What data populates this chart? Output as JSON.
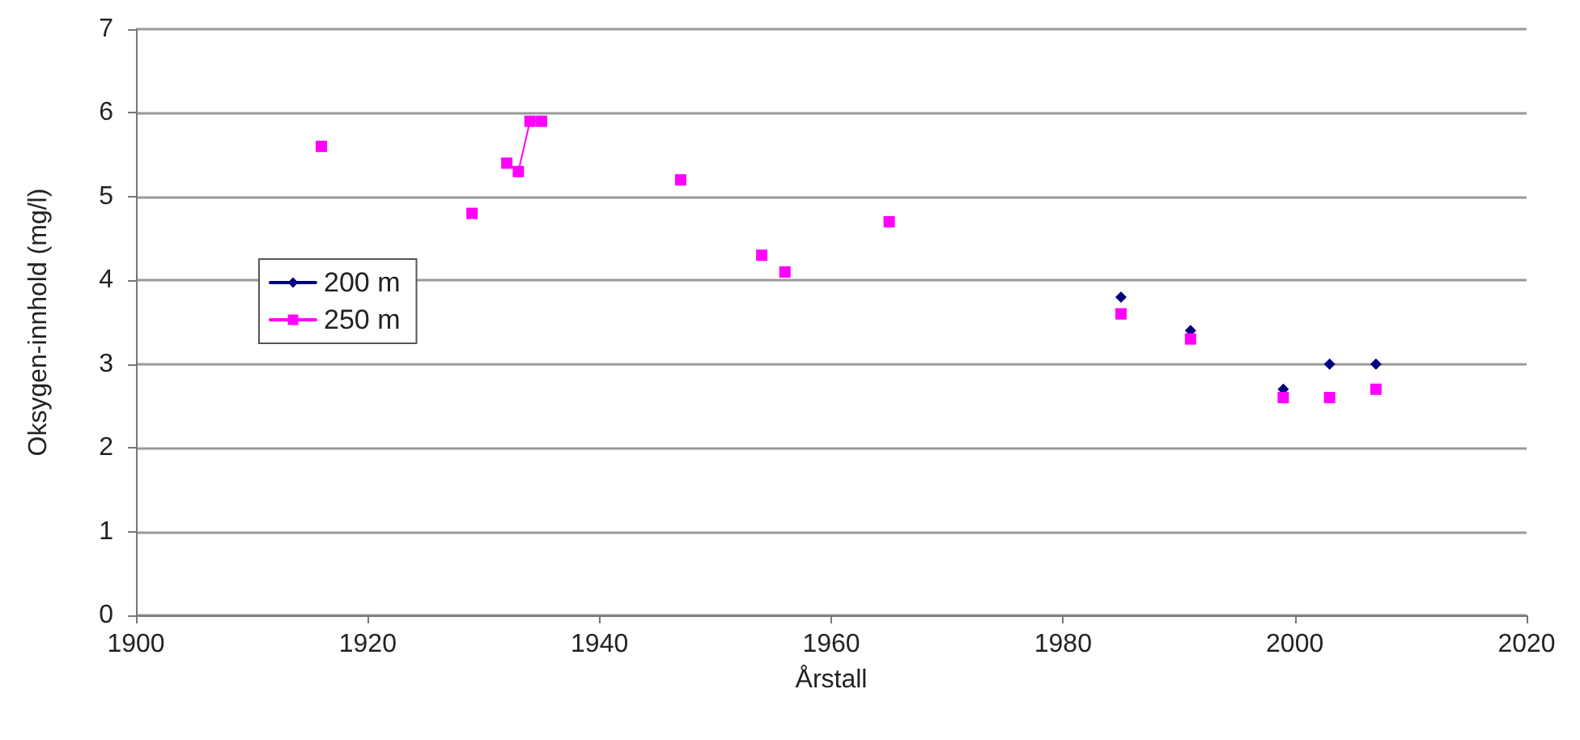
{
  "chart_data": {
    "type": "line",
    "xlabel": "Årstall",
    "ylabel": "Oksygen-innhold (mg/l)",
    "xlim": [
      1900,
      2020
    ],
    "xticks": [
      1900,
      1920,
      1940,
      1960,
      1980,
      2000,
      2020
    ],
    "ylim": [
      0,
      7
    ],
    "yticks": [
      0,
      1,
      2,
      3,
      4,
      5,
      6,
      7
    ],
    "grid": "y",
    "legend": "left",
    "line_style": "solid",
    "series": [
      {
        "name": "200 m",
        "color": "#000080",
        "marker": "diamond",
        "x": [
          1985,
          1986,
          1991,
          1992,
          1999,
          2000,
          2003,
          2004,
          2007
        ],
        "values": [
          3.8,
          null,
          3.4,
          null,
          2.7,
          null,
          3.0,
          null,
          3.0
        ]
      },
      {
        "name": "250 m",
        "color": "#ff00ff",
        "marker": "square",
        "x": [
          1916,
          1917,
          1929,
          1930,
          1932,
          1933,
          1934,
          1935,
          1936,
          1947,
          1948,
          1954,
          1955,
          1956,
          1957,
          1965,
          1966,
          1985,
          1986,
          1991,
          1992,
          1999,
          2000,
          2003,
          2004,
          2007
        ],
        "values": [
          5.6,
          null,
          4.8,
          null,
          5.4,
          5.3,
          5.9,
          5.9,
          null,
          5.2,
          null,
          4.3,
          null,
          4.1,
          null,
          4.7,
          null,
          3.6,
          null,
          3.3,
          null,
          2.6,
          null,
          2.6,
          null,
          2.7
        ]
      }
    ]
  }
}
